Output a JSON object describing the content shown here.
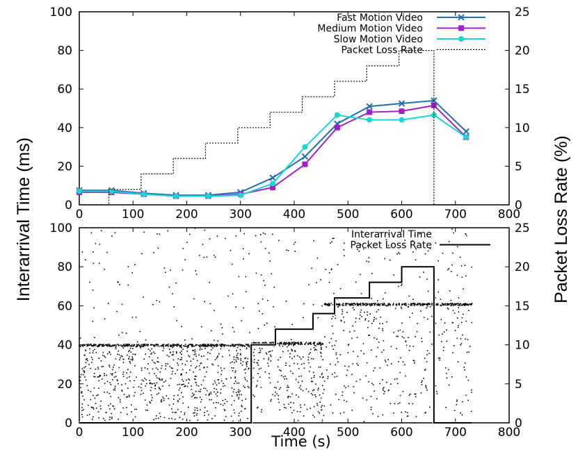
{
  "chart_data": [
    {
      "type": "line",
      "title": "",
      "xlabel": "",
      "ylabel_left": "Interarrival Time (ms)",
      "ylabel_right": "Packet Loss Rate (%)",
      "xlim": [
        0,
        800
      ],
      "ylim_left": [
        0,
        100
      ],
      "ylim_right": [
        0,
        25
      ],
      "x_ticks": [
        0,
        100,
        200,
        300,
        400,
        500,
        600,
        700,
        800
      ],
      "y_left_ticks": [
        0,
        20,
        40,
        60,
        80,
        100
      ],
      "y_right_ticks": [
        0,
        5,
        10,
        15,
        20,
        25
      ],
      "legend_position": "top-right",
      "x": [
        0,
        60,
        120,
        180,
        240,
        300,
        360,
        420,
        480,
        540,
        600,
        660,
        720
      ],
      "series": [
        {
          "name": "Fast Motion Video",
          "color": "#1f6fb2",
          "marker": "x",
          "axis": "left",
          "values": [
            7.5,
            7.5,
            6,
            5,
            5,
            6.5,
            14,
            25,
            42,
            51,
            52.5,
            54,
            38
          ]
        },
        {
          "name": "Medium Motion Video",
          "color": "#a020c8",
          "marker": "square",
          "axis": "left",
          "values": [
            6.5,
            6.5,
            5.5,
            4.5,
            4.5,
            5.5,
            9,
            21,
            40,
            48,
            48.5,
            51.5,
            35
          ]
        },
        {
          "name": "Slow Motion Video",
          "color": "#19d6d6",
          "marker": "circle",
          "axis": "left",
          "values": [
            7,
            7,
            5.5,
            4.5,
            4.5,
            5,
            11,
            30,
            46.5,
            44,
            44,
            46.5,
            35
          ]
        },
        {
          "name": "Packet Loss Rate",
          "color": "#000000",
          "style": "dotted",
          "axis": "right",
          "shape": "step",
          "x": [
            0,
            55,
            55,
            115,
            115,
            175,
            175,
            235,
            235,
            295,
            295,
            355,
            355,
            415,
            415,
            475,
            475,
            535,
            535,
            595,
            595,
            660,
            660,
            720
          ],
          "values": [
            0,
            0,
            2,
            2,
            4,
            4,
            6,
            6,
            8,
            8,
            10,
            10,
            12,
            12,
            14,
            14,
            16,
            16,
            18,
            18,
            20,
            20,
            0,
            0
          ]
        }
      ]
    },
    {
      "type": "scatter",
      "title": "",
      "xlabel": "Time (s)",
      "ylabel_left": "Interarrival Time (ms)",
      "ylabel_right": "Packet Loss Rate (%)",
      "xlim": [
        0,
        800
      ],
      "ylim_left": [
        0,
        100
      ],
      "ylim_right": [
        0,
        25
      ],
      "x_ticks": [
        0,
        100,
        200,
        300,
        400,
        500,
        600,
        700,
        800
      ],
      "y_left_ticks": [
        0,
        20,
        40,
        60,
        80,
        100
      ],
      "y_right_ticks": [
        0,
        5,
        10,
        15,
        20,
        25
      ],
      "legend_position": "top-right",
      "series": [
        {
          "name": "Interarrival Time",
          "color": "#000000",
          "marker": "dot",
          "axis": "left",
          "segments": [
            {
              "x_range": [
                0,
                320
              ],
              "band_max": 40,
              "sparse_max": 100,
              "dense": 0.95
            },
            {
              "x_range": [
                320,
                455
              ],
              "band_max": 41,
              "sparse_max": 100,
              "dense": 0.75
            },
            {
              "x_range": [
                455,
                730
              ],
              "band_max": 61,
              "sparse_max": 100,
              "dense": 0.55
            }
          ]
        },
        {
          "name": "Packet Loss Rate",
          "color": "#000000",
          "style": "solid",
          "axis": "right",
          "shape": "step",
          "x": [
            0,
            320,
            320,
            365,
            365,
            435,
            435,
            475,
            475,
            540,
            540,
            600,
            600,
            660,
            660,
            730
          ],
          "values": [
            0,
            0,
            10,
            10,
            12,
            12,
            14,
            14,
            16,
            16,
            18,
            18,
            20,
            20,
            0,
            0
          ]
        }
      ]
    }
  ]
}
